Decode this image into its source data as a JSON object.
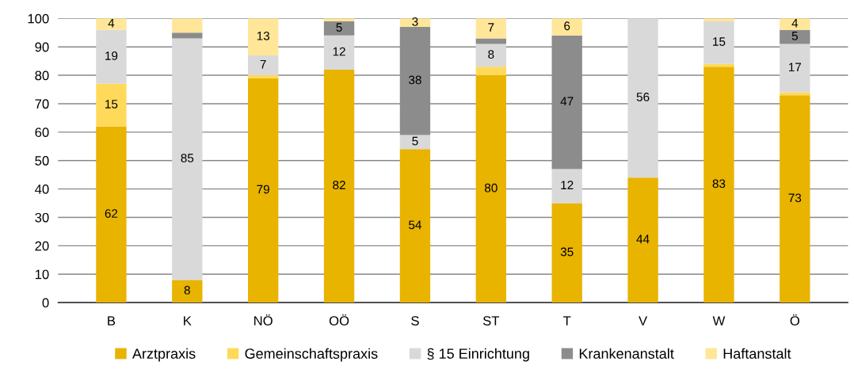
{
  "chart_data": {
    "type": "bar",
    "stacked": true,
    "categories": [
      "B",
      "K",
      "NÖ",
      "OÖ",
      "S",
      "ST",
      "T",
      "V",
      "W",
      "Ö"
    ],
    "ylim": [
      0,
      100
    ],
    "yticks": [
      0,
      10,
      20,
      30,
      40,
      50,
      60,
      70,
      80,
      90,
      100
    ],
    "grid": "y",
    "legend": "bottom",
    "series": [
      {
        "name": "Arztpraxis",
        "color": "#e8b400",
        "values": [
          62,
          8,
          79,
          82,
          54,
          80,
          35,
          44,
          83,
          73
        ],
        "value_labels": [
          "62",
          "8",
          "79",
          "82",
          "54",
          "80",
          "35",
          "44",
          "83",
          "73"
        ]
      },
      {
        "name": "Gemeinschaftspraxis",
        "color": "#ffd95a",
        "values": [
          15,
          0,
          1,
          0,
          0,
          3,
          0,
          0,
          1,
          1
        ],
        "value_labels": [
          "15",
          null,
          null,
          null,
          null,
          null,
          null,
          null,
          null,
          null
        ]
      },
      {
        "name": "§ 15 Einrichtung",
        "color": "#d9d9d9",
        "values": [
          19,
          85,
          7,
          12,
          5,
          8,
          12,
          56,
          15,
          17
        ],
        "value_labels": [
          "19",
          "85",
          "7",
          "12",
          "5",
          "8",
          "12",
          "56",
          "15",
          "17"
        ]
      },
      {
        "name": "Krankenanstalt",
        "color": "#8c8c8c",
        "values": [
          0,
          2,
          0,
          5,
          38,
          2,
          47,
          0,
          0,
          5
        ],
        "value_labels": [
          null,
          null,
          null,
          "5",
          "38",
          null,
          "47",
          null,
          null,
          "5"
        ]
      },
      {
        "name": "Haftanstalt",
        "color": "#ffe699",
        "values": [
          4,
          5,
          13,
          1,
          3,
          7,
          6,
          0,
          1,
          4
        ],
        "value_labels": [
          "4",
          null,
          "13",
          null,
          "3",
          "7",
          "6",
          null,
          null,
          "4"
        ]
      }
    ]
  }
}
